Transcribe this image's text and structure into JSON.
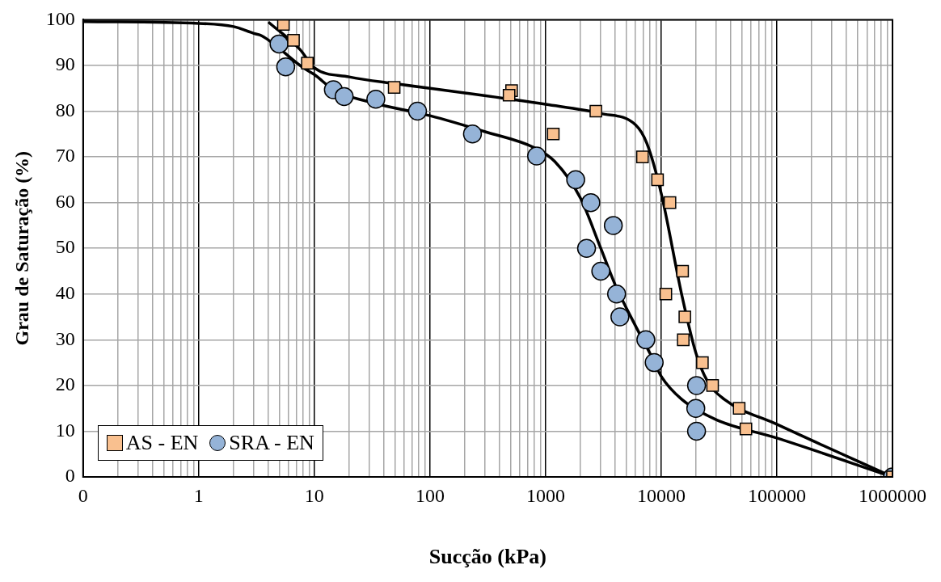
{
  "chart_data": {
    "type": "scatter",
    "xlabel": "Sucção (kPa)",
    "ylabel": "Grau de Saturação (%)",
    "log": "x",
    "grid": true,
    "legend": "bottom left",
    "xlim": [
      0.1,
      1000000
    ],
    "xticks": [
      {
        "value": 0.1,
        "label": "0"
      },
      1,
      10,
      100,
      1000,
      10000,
      100000,
      1000000
    ],
    "ylim": [
      0,
      100
    ],
    "yticks": [
      0,
      10,
      20,
      30,
      40,
      50,
      60,
      70,
      80,
      90,
      100
    ],
    "series": [
      {
        "name": "AS - EN",
        "marker": "square",
        "color": "#f9c08f",
        "x": [
          5.4,
          6.6,
          8.7,
          49,
          508,
          483,
          2720,
          1165,
          6880,
          9290,
          11900,
          15300,
          10960,
          16000,
          15500,
          22700,
          27800,
          47200,
          54000,
          1000000
        ],
        "values": [
          99,
          95.5,
          90.5,
          85.2,
          84.5,
          83.5,
          80,
          75,
          70,
          65,
          60,
          45,
          40,
          35,
          30,
          25,
          20,
          15,
          10.5,
          0
        ]
      },
      {
        "name": "SRA - EN",
        "marker": "circle",
        "color": "#95b3d7",
        "x": [
          4.95,
          5.65,
          14.6,
          18.1,
          34,
          78,
          233,
          836,
          1820,
          2460,
          3850,
          2260,
          3000,
          4110,
          4390,
          7360,
          8690,
          20200,
          19900,
          20200,
          1000000
        ],
        "values": [
          94.7,
          89.7,
          84.7,
          83.2,
          82.6,
          80,
          75,
          70.2,
          65,
          60,
          55,
          50,
          45,
          40,
          35,
          30,
          25,
          20,
          15,
          10,
          0
        ]
      },
      {
        "type": "line",
        "marker": "none",
        "line_style": "solid",
        "color": "#000000",
        "x": [
          4,
          7.5,
          10,
          20,
          50,
          200,
          1000,
          3000,
          6000,
          7500,
          10000,
          15000,
          20000,
          25000,
          35000,
          100000,
          1000000
        ],
        "values": [
          99.5,
          93.5,
          89.5,
          87.5,
          86,
          84,
          81.5,
          79.5,
          77,
          73,
          62,
          40,
          27,
          21,
          17,
          11.5,
          0
        ]
      },
      {
        "type": "line",
        "marker": "none",
        "line_style": "solid",
        "color": "#000000",
        "x": [
          0.1,
          1,
          2,
          3,
          3.5,
          8,
          10,
          15,
          30,
          100,
          300,
          800,
          1200,
          2000,
          3000,
          4000,
          6000,
          8000,
          10000,
          15000,
          30000,
          100000,
          1000000
        ],
        "values": [
          99.6,
          99.2,
          98.5,
          97,
          96.5,
          89.5,
          88,
          84.5,
          82,
          79,
          75.5,
          72,
          69,
          61,
          50,
          42,
          33,
          27,
          22,
          17,
          12.5,
          8.5,
          0
        ]
      }
    ]
  }
}
